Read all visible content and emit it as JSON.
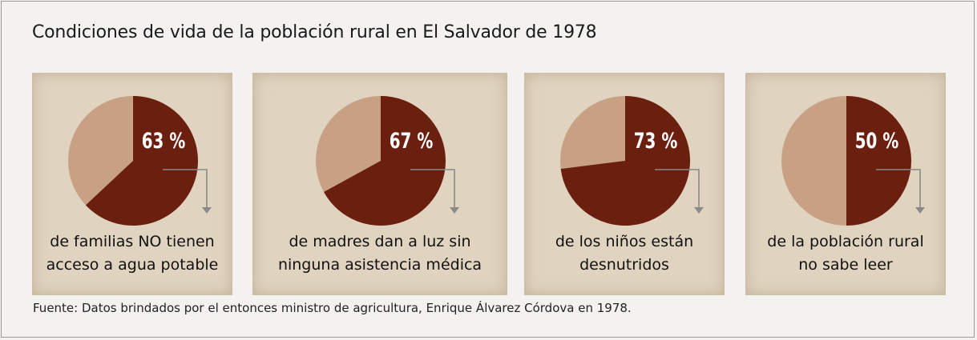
{
  "title": "Condiciones de vida de la población rural en El Salvador de 1978",
  "source": "Fuente: Datos brindados por el entonces ministro de agricultura, Enrique Álvarez Córdova en 1978.",
  "colors": {
    "primary": "#6b1f0e",
    "secondary": "#c8a185",
    "card": "#e0d4c0",
    "arrow": "#8a8a8a"
  },
  "chart_data": [
    {
      "type": "pie",
      "value": 63,
      "label": "63 %",
      "description_lines": [
        "de familias NO tienen",
        "acceso a agua potable"
      ]
    },
    {
      "type": "pie",
      "value": 67,
      "label": "67 %",
      "description_lines": [
        "de madres dan a luz sin",
        "ninguna asistencia médica"
      ]
    },
    {
      "type": "pie",
      "value": 73,
      "label": "73 %",
      "description_lines": [
        "de los niños están",
        "desnutridos"
      ]
    },
    {
      "type": "pie",
      "value": 50,
      "label": "50 %",
      "description_lines": [
        "de la población rural",
        "no sabe leer"
      ]
    }
  ]
}
